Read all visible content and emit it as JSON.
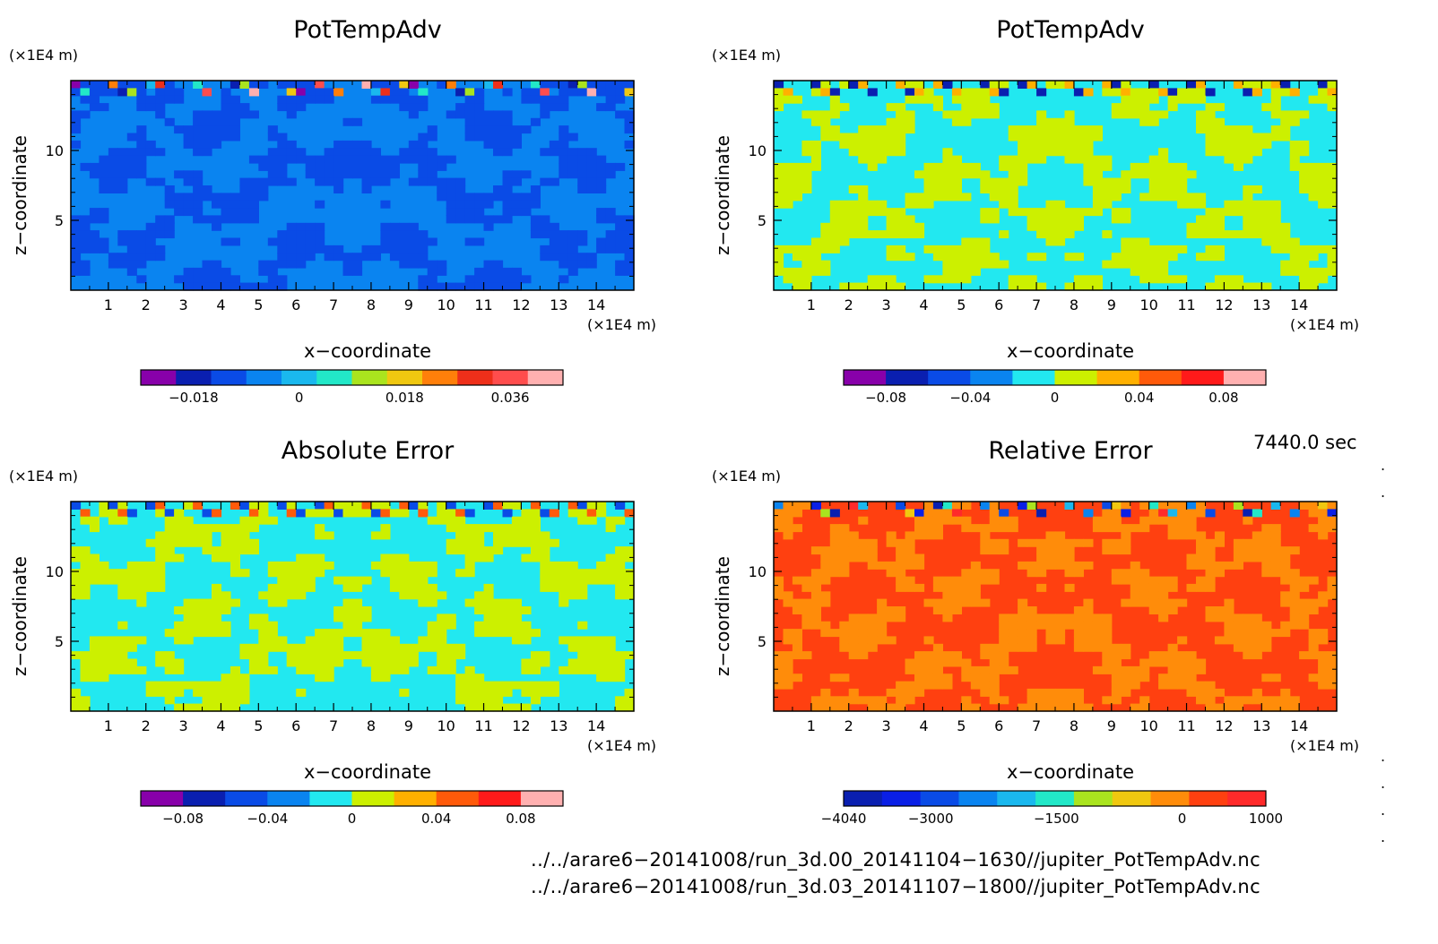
{
  "chart_data": [
    {
      "type": "heatmap",
      "title": "PotTempAdv",
      "xlabel": "x−coordinate",
      "ylabel": "z−coordinate",
      "x_unit": "(×1E4 m)",
      "z_unit": "(×1E4 m)",
      "xlim": [
        0,
        15
      ],
      "zlim": [
        0,
        15
      ],
      "x_ticks": [
        "1",
        "2",
        "3",
        "4",
        "5",
        "6",
        "7",
        "8",
        "9",
        "10",
        "11",
        "12",
        "13",
        "14"
      ],
      "z_ticks": [
        "5",
        "10"
      ],
      "colorbar": {
        "colors": [
          "#8800aa",
          "#0a1fb0",
          "#0a4be6",
          "#0a84f0",
          "#1ab8ee",
          "#22e8c8",
          "#aae41e",
          "#f0c810",
          "#ff7f0a",
          "#ee2f1a",
          "#ff4d4d",
          "#ffb0b0"
        ],
        "ticks": [
          "−0.018",
          "0",
          "0.018",
          "0.036"
        ],
        "tick_values": [
          -0.018,
          0,
          0.018,
          0.036
        ],
        "range": [
          -0.027,
          0.045
        ]
      },
      "dominant_levels": [
        "#0a84f0",
        "#0a4be6"
      ]
    },
    {
      "type": "heatmap",
      "title": "PotTempAdv",
      "xlabel": "x−coordinate",
      "ylabel": "z−coordinate",
      "x_unit": "(×1E4 m)",
      "z_unit": "(×1E4 m)",
      "xlim": [
        0,
        15
      ],
      "zlim": [
        0,
        15
      ],
      "x_ticks": [
        "1",
        "2",
        "3",
        "4",
        "5",
        "6",
        "7",
        "8",
        "9",
        "10",
        "11",
        "12",
        "13",
        "14"
      ],
      "z_ticks": [
        "5",
        "10"
      ],
      "colorbar": {
        "colors": [
          "#8800aa",
          "#0a1fb0",
          "#0a4be6",
          "#0a84f0",
          "#22e8f0",
          "#ccf000",
          "#ffb000",
          "#ff5a0a",
          "#ff1a1a",
          "#ffb0b0"
        ],
        "ticks": [
          "−0.08",
          "−0.04",
          "0",
          "0.04",
          "0.08"
        ],
        "tick_values": [
          -0.08,
          -0.04,
          0,
          0.04,
          0.08
        ],
        "range": [
          -0.1,
          0.1
        ]
      },
      "dominant_levels": [
        "#22e8f0",
        "#ccf000"
      ]
    },
    {
      "type": "heatmap",
      "title": "Absolute Error",
      "xlabel": "x−coordinate",
      "ylabel": "z−coordinate",
      "x_unit": "(×1E4 m)",
      "z_unit": "(×1E4 m)",
      "xlim": [
        0,
        15
      ],
      "zlim": [
        0,
        15
      ],
      "x_ticks": [
        "1",
        "2",
        "3",
        "4",
        "5",
        "6",
        "7",
        "8",
        "9",
        "10",
        "11",
        "12",
        "13",
        "14"
      ],
      "z_ticks": [
        "5",
        "10"
      ],
      "colorbar": {
        "colors": [
          "#8800aa",
          "#0a1fb0",
          "#0a4be6",
          "#0a84f0",
          "#22e8f0",
          "#ccf000",
          "#ffb000",
          "#ff5a0a",
          "#ff1a1a",
          "#ffb0b0"
        ],
        "ticks": [
          "−0.08",
          "−0.04",
          "0",
          "0.04",
          "0.08"
        ],
        "tick_values": [
          -0.08,
          -0.04,
          0,
          0.04,
          0.08
        ],
        "range": [
          -0.1,
          0.1
        ]
      },
      "dominant_levels": [
        "#22e8f0",
        "#ccf000"
      ]
    },
    {
      "type": "heatmap",
      "title": "Relative Error",
      "xlabel": "x−coordinate",
      "ylabel": "z−coordinate",
      "x_unit": "(×1E4 m)",
      "z_unit": "(×1E4 m)",
      "xlim": [
        0,
        15
      ],
      "zlim": [
        0,
        15
      ],
      "x_ticks": [
        "1",
        "2",
        "3",
        "4",
        "5",
        "6",
        "7",
        "8",
        "9",
        "10",
        "11",
        "12",
        "13",
        "14"
      ],
      "z_ticks": [
        "5",
        "10"
      ],
      "colorbar": {
        "colors": [
          "#0a1fb0",
          "#0a1fe6",
          "#0a4be6",
          "#0a84f0",
          "#1ab8ee",
          "#22e8c8",
          "#aae41e",
          "#f0c810",
          "#ff8c0a",
          "#ff4010",
          "#ff2a2a"
        ],
        "ticks": [
          "−4040",
          "−3000",
          "−1500",
          "0",
          "1000"
        ],
        "tick_values": [
          -4040,
          -3000,
          -1500,
          0,
          1000
        ],
        "range": [
          -4040,
          1000
        ]
      },
      "dominant_levels": [
        "#ff4010",
        "#ff8c0a"
      ]
    }
  ],
  "timestamp": "7440.0 sec",
  "sources": [
    "../../arare6−20141008/run_3d.00_20141104−1630//jupiter_PotTempAdv.nc",
    "../../arare6−20141008/run_3d.03_20141107−1800//jupiter_PotTempAdv.nc"
  ]
}
